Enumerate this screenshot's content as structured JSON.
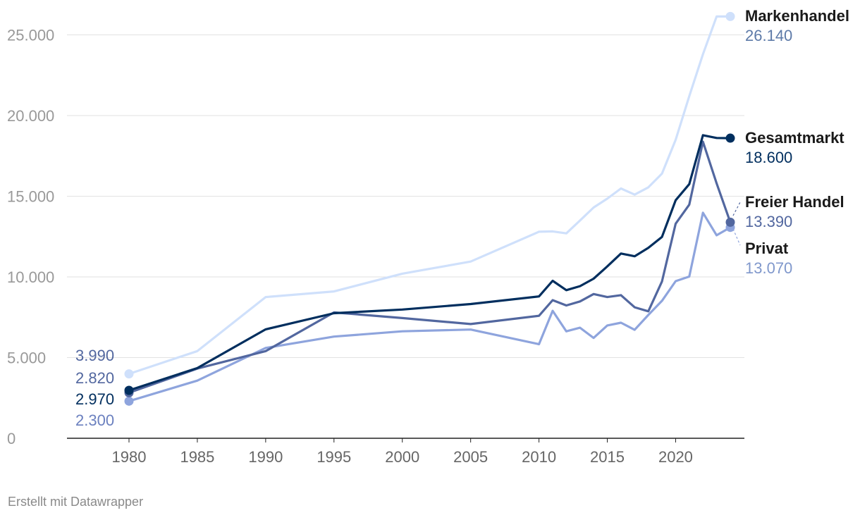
{
  "chart_data": {
    "type": "line",
    "title": "",
    "xlabel": "",
    "ylabel": "",
    "xlim": [
      1975,
      2025
    ],
    "ylim": [
      0,
      27000
    ],
    "grid": true,
    "legend": "inline end labels",
    "x_ticks": [
      "1980",
      "1985",
      "1990",
      "1995",
      "2000",
      "2005",
      "2010",
      "2015",
      "2020"
    ],
    "y_ticks": [
      "0",
      "5.000",
      "10.000",
      "15.000",
      "20.000",
      "25.000"
    ],
    "series": [
      {
        "name": "Markenhandel",
        "color": "#cfe0fb",
        "start_label": "3.990",
        "end_label": "26.140",
        "end_label_color": "#5d7aa8",
        "points": [
          [
            1980,
            3990
          ],
          [
            1985,
            5400
          ],
          [
            1990,
            8750
          ],
          [
            1995,
            9100
          ],
          [
            2000,
            10200
          ],
          [
            2005,
            10950
          ],
          [
            2010,
            12800
          ],
          [
            2011,
            12820
          ],
          [
            2012,
            12700
          ],
          [
            2013,
            13500
          ],
          [
            2014,
            14300
          ],
          [
            2015,
            14850
          ],
          [
            2016,
            15480
          ],
          [
            2017,
            15100
          ],
          [
            2018,
            15550
          ],
          [
            2019,
            16400
          ],
          [
            2020,
            18500
          ],
          [
            2021,
            21200
          ],
          [
            2022,
            23800
          ],
          [
            2023,
            26140
          ],
          [
            2024,
            26140
          ]
        ]
      },
      {
        "name": "Gesamtmarkt",
        "color": "#002e5e",
        "start_label": "2.970",
        "end_label": "18.600",
        "end_label_color": "#002e5e",
        "points": [
          [
            1980,
            2970
          ],
          [
            1985,
            4350
          ],
          [
            1990,
            6750
          ],
          [
            1995,
            7750
          ],
          [
            2000,
            7980
          ],
          [
            2005,
            8320
          ],
          [
            2010,
            8790
          ],
          [
            2011,
            9760
          ],
          [
            2012,
            9180
          ],
          [
            2013,
            9430
          ],
          [
            2014,
            9890
          ],
          [
            2015,
            10650
          ],
          [
            2016,
            11450
          ],
          [
            2017,
            11280
          ],
          [
            2018,
            11800
          ],
          [
            2019,
            12480
          ],
          [
            2020,
            14750
          ],
          [
            2021,
            15750
          ],
          [
            2022,
            18780
          ],
          [
            2023,
            18610
          ],
          [
            2024,
            18600
          ]
        ]
      },
      {
        "name": "Freier Handel",
        "color": "#52679f",
        "start_label": "2.820",
        "end_label": "13.390",
        "end_label_color": "#52679f",
        "points": [
          [
            1980,
            2820
          ],
          [
            1985,
            4320
          ],
          [
            1990,
            5400
          ],
          [
            1995,
            7800
          ],
          [
            2000,
            7450
          ],
          [
            2005,
            7080
          ],
          [
            2010,
            7590
          ],
          [
            2011,
            8560
          ],
          [
            2012,
            8230
          ],
          [
            2013,
            8480
          ],
          [
            2014,
            8940
          ],
          [
            2015,
            8750
          ],
          [
            2016,
            8870
          ],
          [
            2017,
            8120
          ],
          [
            2018,
            7870
          ],
          [
            2019,
            9720
          ],
          [
            2020,
            13300
          ],
          [
            2021,
            14480
          ],
          [
            2022,
            18380
          ],
          [
            2023,
            15800
          ],
          [
            2024,
            13390
          ]
        ]
      },
      {
        "name": "Privat",
        "color": "#8ea4dd",
        "start_label": "2.300",
        "end_label": "13.070",
        "end_label_color": "#8098cc",
        "points": [
          [
            1980,
            2300
          ],
          [
            1985,
            3570
          ],
          [
            1990,
            5600
          ],
          [
            1995,
            6300
          ],
          [
            2000,
            6630
          ],
          [
            2005,
            6740
          ],
          [
            2010,
            5830
          ],
          [
            2011,
            7900
          ],
          [
            2012,
            6630
          ],
          [
            2013,
            6850
          ],
          [
            2014,
            6220
          ],
          [
            2015,
            6990
          ],
          [
            2016,
            7160
          ],
          [
            2017,
            6720
          ],
          [
            2018,
            7640
          ],
          [
            2019,
            8520
          ],
          [
            2020,
            9740
          ],
          [
            2021,
            10020
          ],
          [
            2022,
            13980
          ],
          [
            2023,
            12580
          ],
          [
            2024,
            13070
          ]
        ]
      }
    ]
  },
  "credit": "Erstellt mit Datawrapper"
}
